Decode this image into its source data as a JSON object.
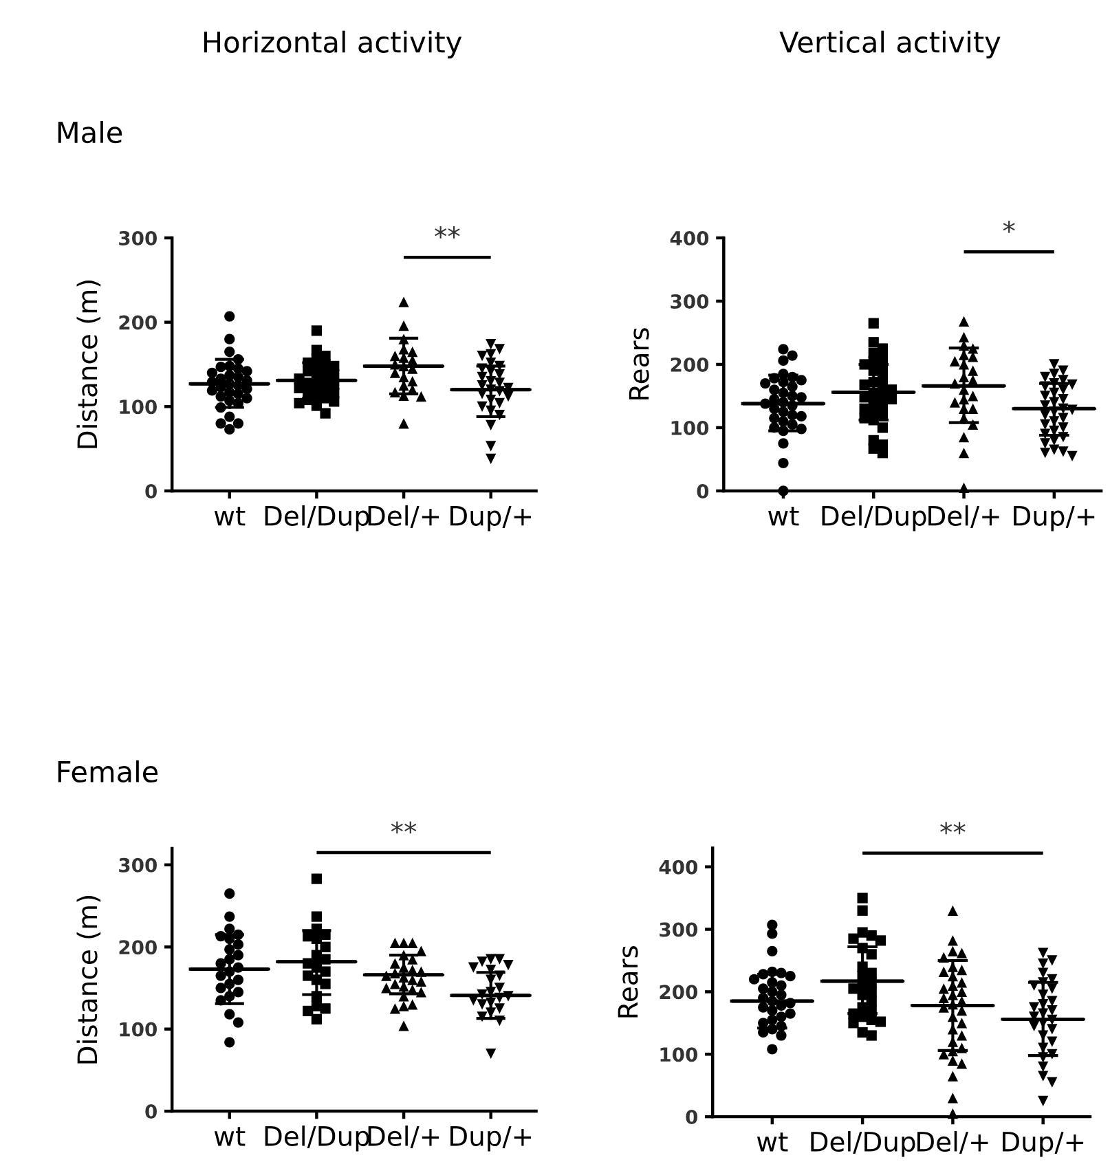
{
  "chart_data": [
    {
      "type": "scatter",
      "title": "Horizontal activity",
      "subtitle": "Male",
      "ylabel": "Distance (m)",
      "categories": [
        "wt",
        "Del/Dup",
        "Del/+",
        "Dup/+"
      ],
      "ylim": [
        0,
        300
      ],
      "yticks": [
        0,
        100,
        200,
        300
      ],
      "series": [
        {
          "x": [
            "wt",
            "wt",
            "wt",
            "wt",
            "wt",
            "wt",
            "wt",
            "wt",
            "wt",
            "wt",
            "wt",
            "wt",
            "wt",
            "wt",
            "wt",
            "wt",
            "wt",
            "wt",
            "wt",
            "wt",
            "wt",
            "wt",
            "wt",
            "wt",
            "wt",
            "wt",
            "wt",
            "wt",
            "wt",
            "wt"
          ],
          "values": [
            207,
            180,
            165,
            156,
            148,
            147,
            145,
            142,
            140,
            137,
            135,
            133,
            131,
            129,
            127,
            125,
            123,
            121,
            119,
            117,
            115,
            112,
            110,
            107,
            104,
            99,
            88,
            80,
            80,
            73
          ],
          "marker": "circle",
          "color": "#000000"
        },
        {
          "x": [
            "Del/Dup",
            "Del/Dup",
            "Del/Dup",
            "Del/Dup",
            "Del/Dup",
            "Del/Dup",
            "Del/Dup",
            "Del/Dup",
            "Del/Dup",
            "Del/Dup",
            "Del/Dup",
            "Del/Dup",
            "Del/Dup",
            "Del/Dup",
            "Del/Dup",
            "Del/Dup",
            "Del/Dup",
            "Del/Dup",
            "Del/Dup",
            "Del/Dup",
            "Del/Dup",
            "Del/Dup",
            "Del/Dup",
            "Del/Dup",
            "Del/Dup",
            "Del/Dup",
            "Del/Dup",
            "Del/Dup"
          ],
          "values": [
            190,
            167,
            160,
            157,
            152,
            150,
            148,
            145,
            142,
            140,
            138,
            135,
            133,
            130,
            128,
            126,
            124,
            122,
            120,
            118,
            116,
            113,
            110,
            108,
            106,
            104,
            101,
            92
          ],
          "marker": "square",
          "color": "#000000"
        },
        {
          "x": [
            "Del/+",
            "Del/+",
            "Del/+",
            "Del/+",
            "Del/+",
            "Del/+",
            "Del/+",
            "Del/+",
            "Del/+",
            "Del/+",
            "Del/+",
            "Del/+",
            "Del/+",
            "Del/+",
            "Del/+",
            "Del/+",
            "Del/+",
            "Del/+",
            "Del/+",
            "Del/+"
          ],
          "values": [
            224,
            196,
            180,
            168,
            165,
            160,
            158,
            155,
            150,
            148,
            145,
            140,
            135,
            130,
            125,
            120,
            117,
            113,
            112,
            80
          ],
          "marker": "triangle",
          "color": "#000000"
        },
        {
          "x": [
            "Dup/+",
            "Dup/+",
            "Dup/+",
            "Dup/+",
            "Dup/+",
            "Dup/+",
            "Dup/+",
            "Dup/+",
            "Dup/+",
            "Dup/+",
            "Dup/+",
            "Dup/+",
            "Dup/+",
            "Dup/+",
            "Dup/+",
            "Dup/+",
            "Dup/+",
            "Dup/+",
            "Dup/+",
            "Dup/+",
            "Dup/+",
            "Dup/+",
            "Dup/+",
            "Dup/+",
            "Dup/+",
            "Dup/+"
          ],
          "values": [
            174,
            168,
            162,
            160,
            152,
            148,
            145,
            142,
            138,
            135,
            130,
            128,
            125,
            122,
            120,
            118,
            115,
            112,
            108,
            104,
            100,
            95,
            90,
            78,
            53,
            38
          ],
          "marker": "triangle_down",
          "color": "#000000"
        },
        {
          "type": "box",
          "color": "#000000",
          "boxes": [
            {
              "low": 99,
              "q1": 127,
              "median": 127,
              "q3": 127,
              "high": 156
            },
            {
              "low": 110,
              "q1": 131,
              "median": 131,
              "q3": 131,
              "high": 152
            },
            {
              "low": 115,
              "q1": 148,
              "median": 148,
              "q3": 148,
              "high": 181
            },
            {
              "low": 88,
              "q1": 120,
              "median": 120,
              "q3": 120,
              "high": 148
            }
          ]
        },
        {
          "type": "line",
          "x": [
            "Del/+",
            "Dup/+"
          ],
          "values": [
            277,
            277
          ],
          "color": "#000000"
        }
      ],
      "annotations": [
        "**"
      ]
    },
    {
      "type": "scatter",
      "title": "Vertical activity",
      "ylabel": "Rears",
      "categories": [
        "wt",
        "Del/Dup",
        "Del/+",
        "Dup/+"
      ],
      "ylim": [
        0,
        400
      ],
      "yticks": [
        0,
        100,
        200,
        300,
        400
      ],
      "series": [
        {
          "x": [
            "wt",
            "wt",
            "wt",
            "wt",
            "wt",
            "wt",
            "wt",
            "wt",
            "wt",
            "wt",
            "wt",
            "wt",
            "wt",
            "wt",
            "wt",
            "wt",
            "wt",
            "wt",
            "wt",
            "wt",
            "wt",
            "wt",
            "wt",
            "wt",
            "wt",
            "wt",
            "wt",
            "wt",
            "wt",
            "wt",
            "wt"
          ],
          "values": [
            224,
            214,
            206,
            185,
            180,
            178,
            175,
            172,
            170,
            165,
            160,
            155,
            150,
            148,
            145,
            140,
            138,
            135,
            130,
            125,
            120,
            118,
            115,
            110,
            105,
            100,
            98,
            95,
            75,
            44,
            0
          ],
          "marker": "circle",
          "color": "#000000"
        },
        {
          "x": [
            "Del/Dup",
            "Del/Dup",
            "Del/Dup",
            "Del/Dup",
            "Del/Dup",
            "Del/Dup",
            "Del/Dup",
            "Del/Dup",
            "Del/Dup",
            "Del/Dup",
            "Del/Dup",
            "Del/Dup",
            "Del/Dup",
            "Del/Dup",
            "Del/Dup",
            "Del/Dup",
            "Del/Dup",
            "Del/Dup",
            "Del/Dup",
            "Del/Dup",
            "Del/Dup",
            "Del/Dup",
            "Del/Dup",
            "Del/Dup",
            "Del/Dup",
            "Del/Dup",
            "Del/Dup",
            "Del/Dup",
            "Del/Dup",
            "Del/Dup"
          ],
          "values": [
            265,
            235,
            225,
            218,
            210,
            205,
            200,
            195,
            190,
            180,
            172,
            168,
            165,
            160,
            155,
            150,
            148,
            145,
            140,
            135,
            130,
            125,
            120,
            115,
            112,
            100,
            80,
            73,
            67,
            60
          ],
          "marker": "square",
          "color": "#000000"
        },
        {
          "x": [
            "Del/+",
            "Del/+",
            "Del/+",
            "Del/+",
            "Del/+",
            "Del/+",
            "Del/+",
            "Del/+",
            "Del/+",
            "Del/+",
            "Del/+",
            "Del/+",
            "Del/+",
            "Del/+",
            "Del/+",
            "Del/+",
            "Del/+",
            "Del/+",
            "Del/+",
            "Del/+",
            "Del/+",
            "Del/+",
            "Del/+"
          ],
          "values": [
            268,
            243,
            230,
            225,
            215,
            212,
            205,
            200,
            190,
            180,
            175,
            170,
            160,
            150,
            145,
            140,
            130,
            130,
            115,
            105,
            85,
            60,
            5
          ],
          "marker": "triangle",
          "color": "#000000"
        },
        {
          "x": [
            "Dup/+",
            "Dup/+",
            "Dup/+",
            "Dup/+",
            "Dup/+",
            "Dup/+",
            "Dup/+",
            "Dup/+",
            "Dup/+",
            "Dup/+",
            "Dup/+",
            "Dup/+",
            "Dup/+",
            "Dup/+",
            "Dup/+",
            "Dup/+",
            "Dup/+",
            "Dup/+",
            "Dup/+",
            "Dup/+",
            "Dup/+",
            "Dup/+",
            "Dup/+",
            "Dup/+",
            "Dup/+",
            "Dup/+",
            "Dup/+",
            "Dup/+",
            "Dup/+",
            "Dup/+",
            "Dup/+"
          ],
          "values": [
            200,
            190,
            185,
            180,
            175,
            170,
            168,
            165,
            160,
            155,
            150,
            145,
            140,
            135,
            130,
            128,
            125,
            120,
            115,
            110,
            105,
            100,
            95,
            90,
            85,
            80,
            75,
            65,
            62,
            60,
            55
          ],
          "marker": "triangle_down",
          "color": "#000000"
        },
        {
          "type": "box",
          "color": "#000000",
          "boxes": [
            {
              "low": 95,
              "q1": 138,
              "median": 138,
              "q3": 138,
              "high": 183
            },
            {
              "low": 112,
              "q1": 156,
              "median": 156,
              "q3": 156,
              "high": 200
            },
            {
              "low": 108,
              "q1": 166,
              "median": 166,
              "q3": 166,
              "high": 226
            },
            {
              "low": 88,
              "q1": 130,
              "median": 130,
              "q3": 130,
              "high": 170
            }
          ]
        },
        {
          "type": "line",
          "x": [
            "Del/+",
            "Dup/+"
          ],
          "values": [
            378,
            378
          ],
          "color": "#000000"
        }
      ],
      "annotations": [
        "*"
      ]
    },
    {
      "type": "scatter",
      "subtitle": "Female",
      "ylabel": "Distance (m)",
      "categories": [
        "wt",
        "Del/Dup",
        "Del/+",
        "Dup/+"
      ],
      "ylim": [
        0,
        320
      ],
      "yticks": [
        0,
        100,
        200,
        300
      ],
      "series": [
        {
          "x": [
            "wt",
            "wt",
            "wt",
            "wt",
            "wt",
            "wt",
            "wt",
            "wt",
            "wt",
            "wt",
            "wt",
            "wt",
            "wt",
            "wt",
            "wt",
            "wt",
            "wt",
            "wt",
            "wt",
            "wt",
            "wt",
            "wt",
            "wt"
          ],
          "values": [
            265,
            237,
            222,
            215,
            213,
            210,
            203,
            197,
            190,
            185,
            180,
            175,
            170,
            165,
            160,
            155,
            150,
            145,
            140,
            135,
            118,
            108,
            84
          ],
          "marker": "circle",
          "color": "#000000"
        },
        {
          "x": [
            "Del/Dup",
            "Del/Dup",
            "Del/Dup",
            "Del/Dup",
            "Del/Dup",
            "Del/Dup",
            "Del/Dup",
            "Del/Dup",
            "Del/Dup",
            "Del/Dup",
            "Del/Dup",
            "Del/Dup",
            "Del/Dup",
            "Del/Dup",
            "Del/Dup",
            "Del/Dup",
            "Del/Dup",
            "Del/Dup",
            "Del/Dup",
            "Del/Dup"
          ],
          "values": [
            283,
            237,
            222,
            215,
            213,
            210,
            200,
            190,
            185,
            180,
            175,
            170,
            165,
            160,
            155,
            140,
            128,
            125,
            122,
            112
          ],
          "marker": "square",
          "color": "#000000"
        },
        {
          "x": [
            "Del/+",
            "Del/+",
            "Del/+",
            "Del/+",
            "Del/+",
            "Del/+",
            "Del/+",
            "Del/+",
            "Del/+",
            "Del/+",
            "Del/+",
            "Del/+",
            "Del/+",
            "Del/+",
            "Del/+",
            "Del/+",
            "Del/+",
            "Del/+",
            "Del/+",
            "Del/+",
            "Del/+",
            "Del/+",
            "Del/+",
            "Del/+",
            "Del/+"
          ],
          "values": [
            205,
            205,
            205,
            195,
            190,
            185,
            180,
            175,
            172,
            170,
            168,
            165,
            163,
            160,
            158,
            155,
            152,
            150,
            148,
            145,
            140,
            130,
            128,
            125,
            104
          ],
          "marker": "triangle",
          "color": "#000000"
        },
        {
          "x": [
            "Dup/+",
            "Dup/+",
            "Dup/+",
            "Dup/+",
            "Dup/+",
            "Dup/+",
            "Dup/+",
            "Dup/+",
            "Dup/+",
            "Dup/+",
            "Dup/+",
            "Dup/+",
            "Dup/+",
            "Dup/+",
            "Dup/+",
            "Dup/+",
            "Dup/+",
            "Dup/+",
            "Dup/+",
            "Dup/+",
            "Dup/+"
          ],
          "values": [
            185,
            185,
            182,
            178,
            175,
            172,
            165,
            160,
            150,
            145,
            142,
            140,
            138,
            135,
            132,
            130,
            125,
            120,
            115,
            110,
            70
          ],
          "marker": "triangle_down",
          "color": "#000000"
        },
        {
          "type": "box",
          "color": "#000000",
          "boxes": [
            {
              "low": 131,
              "q1": 173,
              "median": 173,
              "q3": 173,
              "high": 215
            },
            {
              "low": 142,
              "q1": 182,
              "median": 182,
              "q3": 182,
              "high": 220
            },
            {
              "low": 143,
              "q1": 166,
              "median": 166,
              "q3": 166,
              "high": 190
            },
            {
              "low": 113,
              "q1": 141,
              "median": 141,
              "q3": 141,
              "high": 169
            }
          ]
        },
        {
          "type": "line",
          "x": [
            "Del/Dup",
            "Dup/+"
          ],
          "values": [
            315,
            315
          ],
          "color": "#000000"
        }
      ],
      "annotations": [
        "**"
      ]
    },
    {
      "type": "scatter",
      "ylabel": "Rears",
      "categories": [
        "wt",
        "Del/Dup",
        "Del/+",
        "Dup/+"
      ],
      "ylim": [
        0,
        430
      ],
      "yticks": [
        0,
        100,
        200,
        300,
        400
      ],
      "series": [
        {
          "x": [
            "wt",
            "wt",
            "wt",
            "wt",
            "wt",
            "wt",
            "wt",
            "wt",
            "wt",
            "wt",
            "wt",
            "wt",
            "wt",
            "wt",
            "wt",
            "wt",
            "wt",
            "wt",
            "wt",
            "wt",
            "wt",
            "wt",
            "wt",
            "wt",
            "wt",
            "wt",
            "wt",
            "wt"
          ],
          "values": [
            307,
            293,
            265,
            232,
            230,
            228,
            225,
            220,
            215,
            210,
            205,
            200,
            195,
            190,
            185,
            182,
            178,
            175,
            170,
            165,
            160,
            155,
            150,
            145,
            140,
            135,
            130,
            108
          ],
          "marker": "circle",
          "color": "#000000"
        },
        {
          "x": [
            "Del/Dup",
            "Del/Dup",
            "Del/Dup",
            "Del/Dup",
            "Del/Dup",
            "Del/Dup",
            "Del/Dup",
            "Del/Dup",
            "Del/Dup",
            "Del/Dup",
            "Del/Dup",
            "Del/Dup",
            "Del/Dup",
            "Del/Dup",
            "Del/Dup",
            "Del/Dup",
            "Del/Dup",
            "Del/Dup",
            "Del/Dup",
            "Del/Dup",
            "Del/Dup",
            "Del/Dup",
            "Del/Dup",
            "Del/Dup",
            "Del/Dup",
            "Del/Dup"
          ],
          "values": [
            350,
            330,
            295,
            290,
            285,
            282,
            270,
            260,
            240,
            230,
            225,
            215,
            210,
            205,
            200,
            195,
            185,
            175,
            170,
            165,
            160,
            155,
            152,
            150,
            135,
            130
          ],
          "marker": "square",
          "color": "#000000"
        },
        {
          "x": [
            "Del/+",
            "Del/+",
            "Del/+",
            "Del/+",
            "Del/+",
            "Del/+",
            "Del/+",
            "Del/+",
            "Del/+",
            "Del/+",
            "Del/+",
            "Del/+",
            "Del/+",
            "Del/+",
            "Del/+",
            "Del/+",
            "Del/+",
            "Del/+",
            "Del/+",
            "Del/+",
            "Del/+",
            "Del/+",
            "Del/+",
            "Del/+",
            "Del/+",
            "Del/+",
            "Del/+",
            "Del/+",
            "Del/+",
            "Del/+",
            "Del/+",
            "Del/+"
          ],
          "values": [
            330,
            282,
            265,
            262,
            255,
            240,
            235,
            232,
            225,
            215,
            210,
            205,
            200,
            195,
            190,
            185,
            180,
            175,
            170,
            160,
            150,
            140,
            130,
            120,
            110,
            105,
            100,
            90,
            85,
            65,
            30,
            5
          ],
          "marker": "triangle",
          "color": "#000000"
        },
        {
          "x": [
            "Dup/+",
            "Dup/+",
            "Dup/+",
            "Dup/+",
            "Dup/+",
            "Dup/+",
            "Dup/+",
            "Dup/+",
            "Dup/+",
            "Dup/+",
            "Dup/+",
            "Dup/+",
            "Dup/+",
            "Dup/+",
            "Dup/+",
            "Dup/+",
            "Dup/+",
            "Dup/+",
            "Dup/+",
            "Dup/+",
            "Dup/+",
            "Dup/+",
            "Dup/+",
            "Dup/+",
            "Dup/+",
            "Dup/+",
            "Dup/+",
            "Dup/+"
          ],
          "values": [
            262,
            250,
            245,
            230,
            220,
            215,
            210,
            205,
            195,
            185,
            180,
            175,
            170,
            165,
            160,
            155,
            150,
            145,
            140,
            130,
            120,
            110,
            100,
            95,
            80,
            65,
            55,
            25
          ],
          "marker": "triangle_down",
          "color": "#000000"
        },
        {
          "type": "box",
          "color": "#000000",
          "boxes": [
            {
              "low": 142,
              "q1": 185,
              "median": 185,
              "q3": 185,
              "high": 228
            },
            {
              "low": 165,
              "q1": 217,
              "median": 217,
              "q3": 217,
              "high": 272
            },
            {
              "low": 106,
              "q1": 178,
              "median": 178,
              "q3": 178,
              "high": 250
            },
            {
              "low": 98,
              "q1": 156,
              "median": 156,
              "q3": 156,
              "high": 215
            }
          ]
        },
        {
          "type": "line",
          "x": [
            "Del/Dup",
            "Dup/+"
          ],
          "values": [
            422,
            422
          ],
          "color": "#000000"
        }
      ],
      "annotations": [
        "**"
      ]
    }
  ]
}
